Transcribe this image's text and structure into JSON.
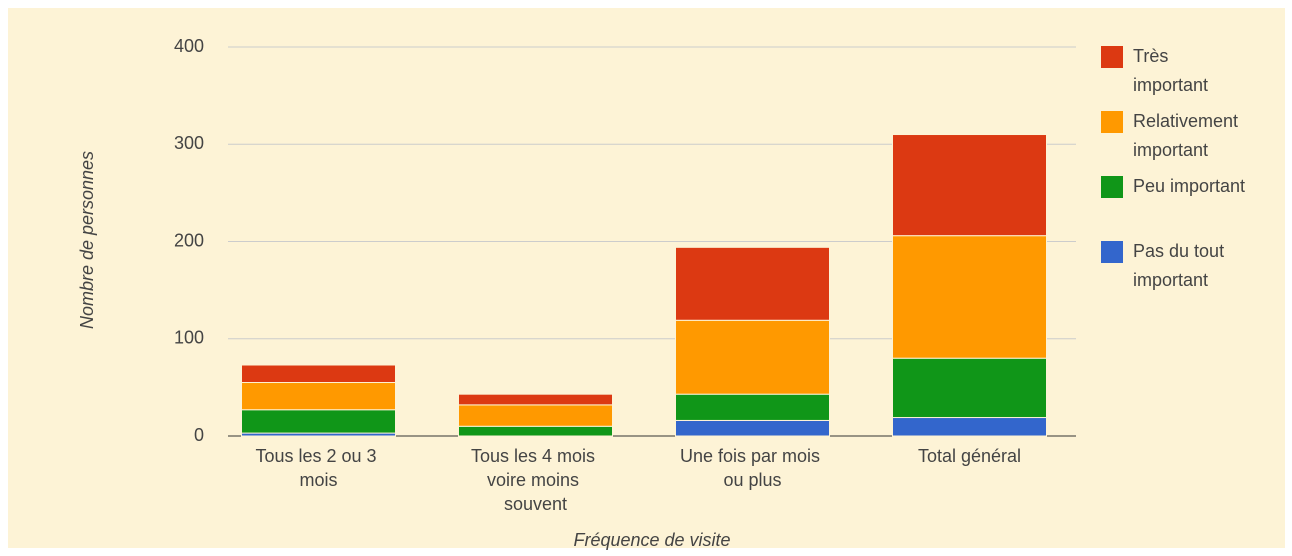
{
  "chart_data": {
    "type": "stacked_bar",
    "categories": [
      "Tous les 2 ou 3 mois",
      "Tous les 4 mois voire moins souvent",
      "Une fois par mois ou plus",
      "Total général"
    ],
    "series": [
      {
        "name": "Pas du tout important",
        "color": "#3366cc",
        "values": [
          3,
          0,
          16,
          19
        ]
      },
      {
        "name": "Peu important",
        "color": "#109618",
        "values": [
          24,
          10,
          27,
          61
        ]
      },
      {
        "name": "Relativement important",
        "color": "#ff9900",
        "values": [
          28,
          22,
          76,
          126
        ]
      },
      {
        "name": "Très important",
        "color": "#dc3912",
        "values": [
          18,
          11,
          75,
          104
        ]
      }
    ],
    "xlabel": "Fréquence de visite",
    "ylabel": "Nombre de personnes",
    "ylim": [
      0,
      400
    ],
    "yticks": [
      0,
      100,
      200,
      300,
      400
    ],
    "grid": true,
    "legend": "right"
  }
}
